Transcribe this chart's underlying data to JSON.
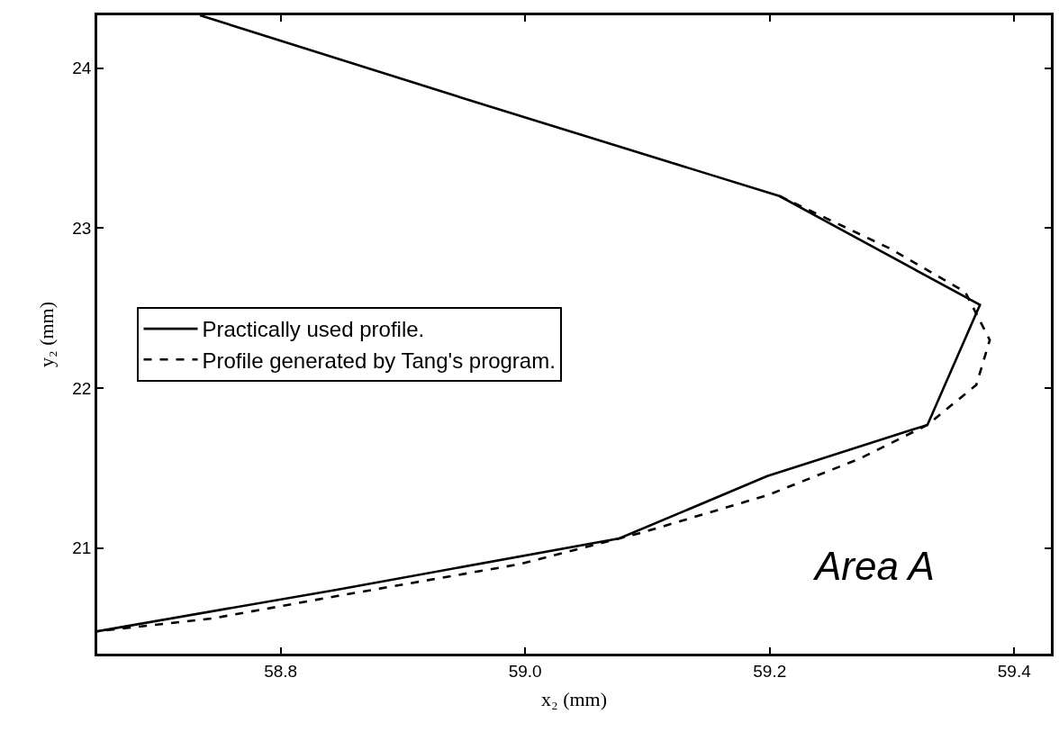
{
  "chart_data": {
    "type": "line",
    "xlabel": "x₂ (mm)",
    "ylabel": "y₂ (mm)",
    "series": [
      {
        "name": "Practically used profile.",
        "color": "#000000",
        "line_style": "solid",
        "x": [
          58.734,
          58.971,
          59.208,
          59.372,
          59.329,
          59.198,
          59.077,
          58.846,
          58.65
        ],
        "values": [
          24.33,
          23.76,
          23.2,
          22.52,
          21.77,
          21.45,
          21.06,
          20.74,
          20.48
        ]
      },
      {
        "name": "Profile generated by Tang's program.",
        "color": "#000000",
        "line_style": "dashed",
        "x": [
          59.208,
          59.299,
          59.36,
          59.38,
          59.369,
          59.329,
          59.274,
          59.198,
          59.097,
          58.996,
          58.846,
          58.744,
          58.65
        ],
        "values": [
          23.2,
          22.87,
          22.6,
          22.3,
          22.02,
          21.77,
          21.56,
          21.33,
          21.1,
          20.9,
          20.7,
          20.56,
          20.48
        ]
      }
    ],
    "xlim": [
      58.65,
      59.43
    ],
    "ylim": [
      20.34,
      24.33
    ],
    "xticks": [
      58.8,
      {
        "value": 59.0,
        "label": "59.0"
      },
      59.2,
      59.4
    ],
    "yticks": [
      21,
      22,
      23,
      24
    ],
    "legend": "left",
    "marker": "none",
    "annotations": [
      "Area A"
    ]
  }
}
